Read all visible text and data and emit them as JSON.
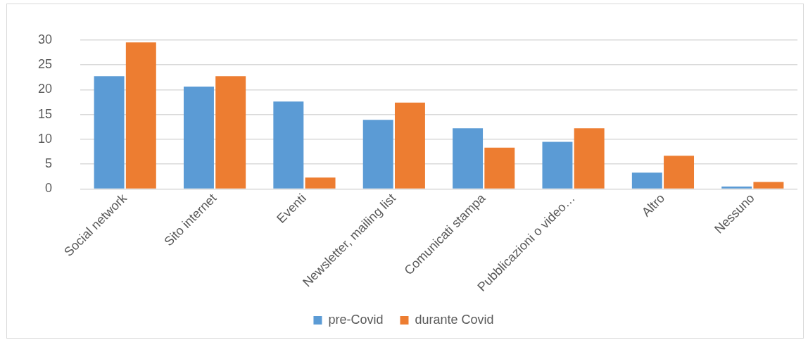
{
  "chart_data": {
    "type": "bar",
    "categories": [
      "Social network",
      "Sito internet",
      "Eventi",
      "Newsletter, mailing list",
      "Comunicati stampa",
      "Pubblicazioni o video…",
      "Altro",
      "Nessuno"
    ],
    "series": [
      {
        "name": "pre-Covid",
        "color": "#5b9bd5",
        "values": [
          22.7,
          20.6,
          17.6,
          13.9,
          12.2,
          9.5,
          3.3,
          0.5
        ]
      },
      {
        "name": "durante Covid",
        "color": "#ed7d31",
        "values": [
          29.5,
          22.7,
          2.3,
          17.4,
          8.3,
          12.2,
          6.7,
          1.4
        ]
      }
    ],
    "ylim": [
      0,
      30
    ],
    "yticks": [
      0,
      5,
      10,
      15,
      20,
      25,
      30
    ],
    "grid": "y",
    "legend": "bottom"
  }
}
